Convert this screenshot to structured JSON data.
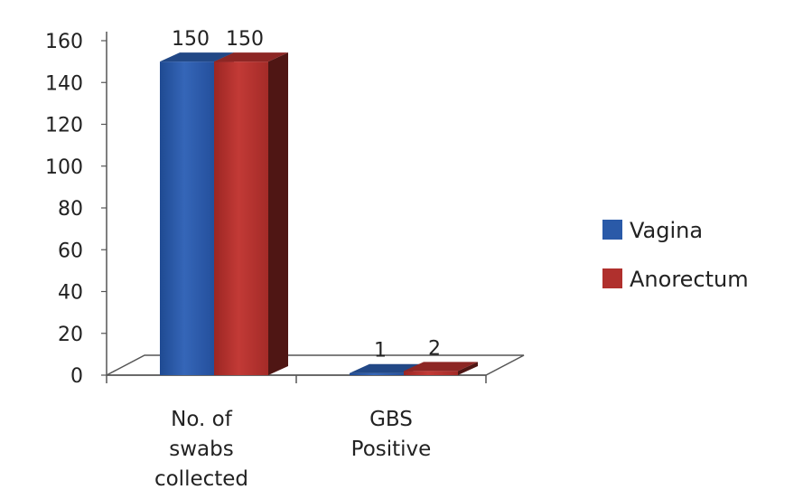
{
  "chart_data": {
    "type": "bar",
    "style": "3d-clustered-column",
    "categories": [
      [
        "No. of",
        "swabs",
        "collected"
      ],
      [
        "GBS",
        "Positive"
      ]
    ],
    "series": [
      {
        "name": "Vagina",
        "values": [
          150,
          1
        ],
        "color": "#2a5aa8"
      },
      {
        "name": "Anorectum",
        "values": [
          150,
          2
        ],
        "color": "#b0302d"
      }
    ],
    "data_labels": [
      [
        "150",
        "1"
      ],
      [
        "150",
        "2"
      ]
    ],
    "ylim": [
      0,
      160
    ],
    "yticks": [
      0,
      20,
      40,
      60,
      80,
      100,
      120,
      140,
      160
    ],
    "legend_position": "right",
    "grid": false
  }
}
